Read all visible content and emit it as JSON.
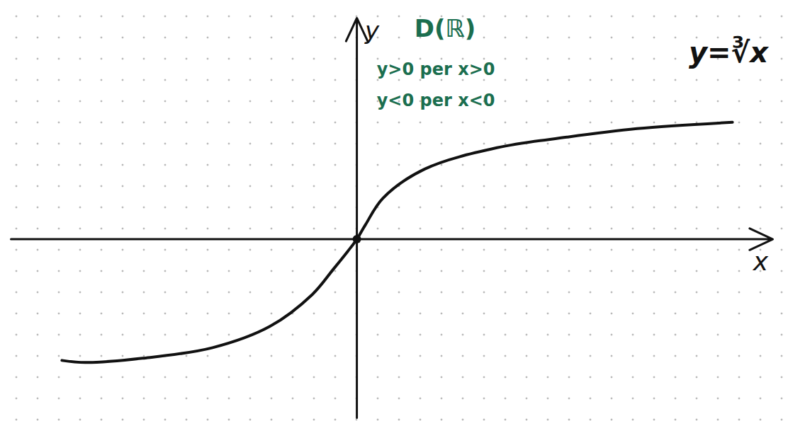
{
  "chart_data": {
    "type": "line",
    "title": "y=∛x",
    "x_label": "x",
    "y_label": "y",
    "annotations": [
      "D(ℝ)",
      "y>0 per x>0",
      "y<0 per x<0"
    ],
    "x": [
      -13.9,
      -12.8,
      -10.1,
      -6.8,
      -4.1,
      -2.1,
      -1.1,
      -0.43,
      0,
      0.4,
      1.23,
      3.2,
      6.6,
      9.9,
      13.2,
      17.7
    ],
    "values": [
      -5.7,
      -5.8,
      -5.6,
      -5.1,
      -4.1,
      -2.6,
      -1.4,
      -0.57,
      0,
      0.67,
      1.93,
      3.3,
      4.3,
      4.8,
      5.2,
      5.5
    ],
    "color": "#111111",
    "xlim": [
      -16.3,
      19.6
    ],
    "ylim": [
      -8.4,
      10.4
    ],
    "xticks": [],
    "yticks": [],
    "tick_labels": false
  }
}
